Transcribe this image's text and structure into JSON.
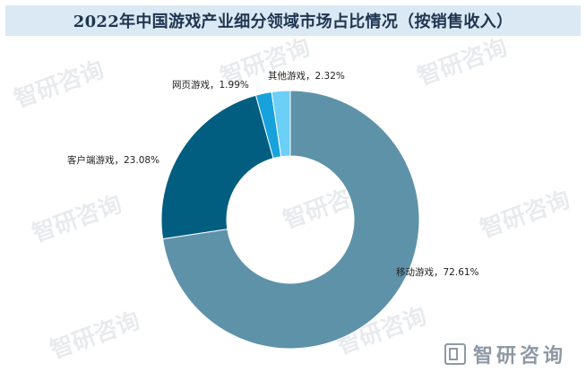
{
  "chart_data": {
    "type": "pie",
    "donut": true,
    "title": "2022年中国游戏产业细分领域市场占比情况（按销售收入）",
    "unit": "%",
    "slices": [
      {
        "label": "移动游戏",
        "value": 72.61,
        "text": "移动游戏，72.61%",
        "color": "#5e92a9"
      },
      {
        "label": "客户端游戏",
        "value": 23.08,
        "text": "客户端游戏，23.08%",
        "color": "#025e80"
      },
      {
        "label": "网页游戏",
        "value": 1.99,
        "text": "网页游戏，1.99%",
        "color": "#17a2dc"
      },
      {
        "label": "其他游戏",
        "value": 2.32,
        "text": "其他游戏，2.32%",
        "color": "#6ccff6"
      }
    ]
  },
  "watermark": {
    "text": "智研咨询"
  },
  "footer": {
    "brand": "智研咨询"
  }
}
